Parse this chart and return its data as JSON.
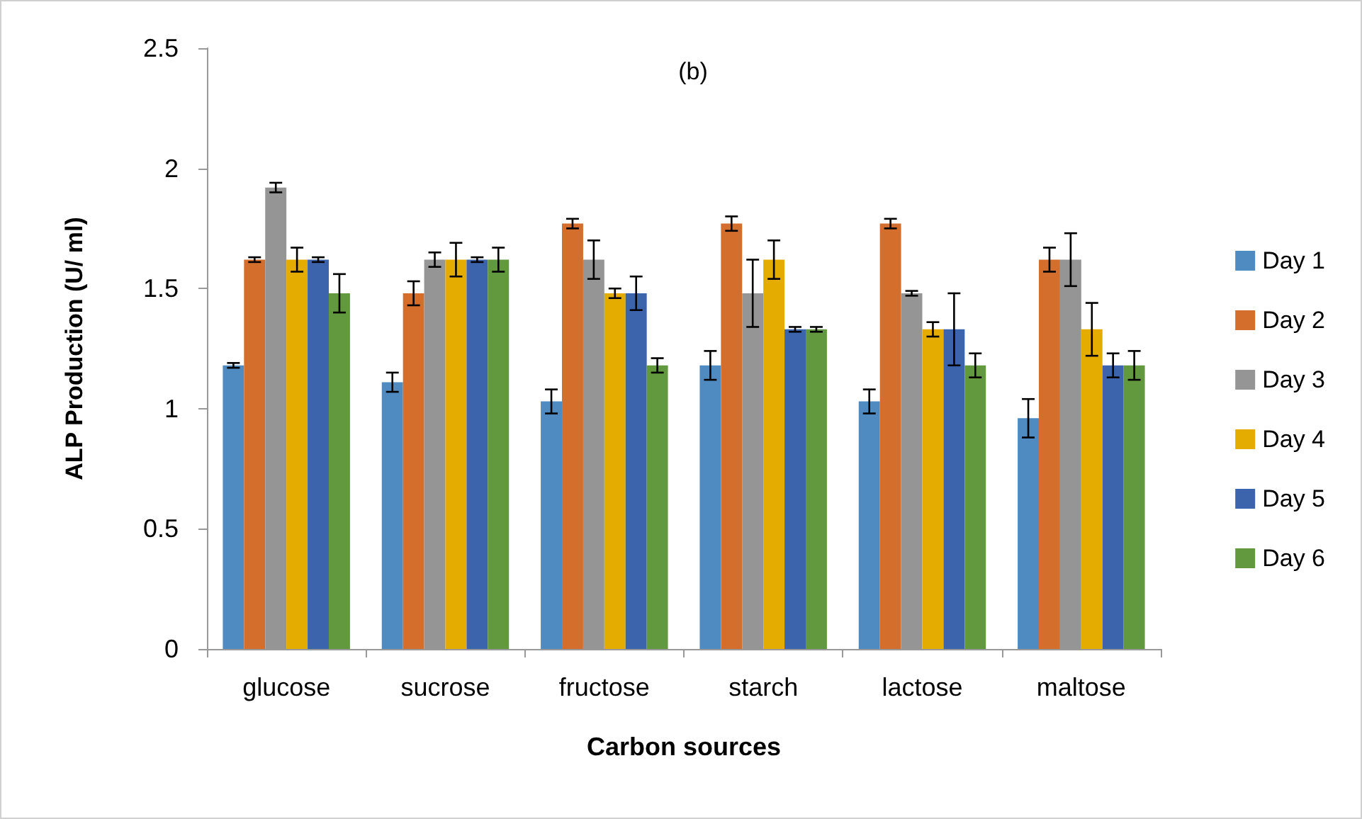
{
  "chart_data": {
    "type": "bar",
    "title": "(b)",
    "xlabel": "Carbon sources",
    "ylabel": "ALP Production (U/ ml)",
    "categories": [
      "glucose",
      "sucrose",
      "fructose",
      "starch",
      "lactose",
      "maltose"
    ],
    "series": [
      {
        "name": "Day 1",
        "color": "#4f8bc0",
        "values": [
          1.18,
          1.11,
          1.03,
          1.18,
          1.03,
          0.96
        ],
        "errors": [
          0.01,
          0.04,
          0.05,
          0.06,
          0.05,
          0.08
        ]
      },
      {
        "name": "Day 2",
        "color": "#d46e2c",
        "values": [
          1.62,
          1.48,
          1.77,
          1.77,
          1.77,
          1.62
        ],
        "errors": [
          0.01,
          0.05,
          0.02,
          0.03,
          0.02,
          0.05
        ]
      },
      {
        "name": "Day 3",
        "color": "#959595",
        "values": [
          1.92,
          1.62,
          1.62,
          1.48,
          1.48,
          1.62
        ],
        "errors": [
          0.02,
          0.03,
          0.08,
          0.14,
          0.01,
          0.11
        ]
      },
      {
        "name": "Day 4",
        "color": "#e5ac00",
        "values": [
          1.62,
          1.62,
          1.48,
          1.62,
          1.33,
          1.33
        ],
        "errors": [
          0.05,
          0.07,
          0.02,
          0.08,
          0.03,
          0.11
        ]
      },
      {
        "name": "Day 5",
        "color": "#3b64ad",
        "values": [
          1.62,
          1.62,
          1.48,
          1.33,
          1.33,
          1.18
        ],
        "errors": [
          0.01,
          0.01,
          0.07,
          0.01,
          0.15,
          0.05
        ]
      },
      {
        "name": "Day 6",
        "color": "#62993e",
        "values": [
          1.48,
          1.62,
          1.18,
          1.33,
          1.18,
          1.18
        ],
        "errors": [
          0.08,
          0.05,
          0.03,
          0.01,
          0.05,
          0.06
        ]
      }
    ],
    "ylim": [
      0,
      2.5
    ],
    "yticks": [
      0,
      0.5,
      1,
      1.5,
      2,
      2.5
    ],
    "grid": false,
    "legend": "right"
  }
}
